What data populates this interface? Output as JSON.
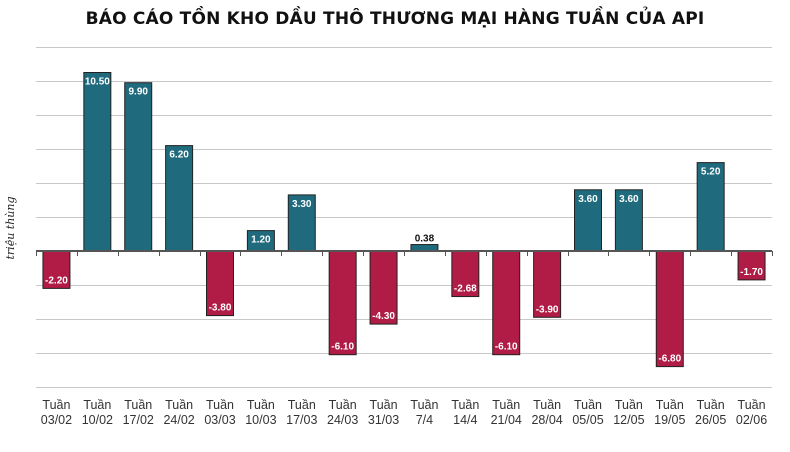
{
  "chart_data": {
    "type": "bar",
    "title": "BÁO CÁO TỒN KHO DẦU THÔ THƯƠNG MẠI HÀNG TUẦN CỦA API",
    "ylabel": "triệu thùng",
    "xlabel": "",
    "categories": [
      [
        "Tuần",
        "03/02"
      ],
      [
        "Tuần",
        "10/02"
      ],
      [
        "Tuần",
        "17/02"
      ],
      [
        "Tuần",
        "24/02"
      ],
      [
        "Tuần",
        "03/03"
      ],
      [
        "Tuần",
        "10/03"
      ],
      [
        "Tuần",
        "17/03"
      ],
      [
        "Tuần",
        "24/03"
      ],
      [
        "Tuần",
        "31/03"
      ],
      [
        "Tuần",
        "7/4"
      ],
      [
        "Tuần",
        "14/4"
      ],
      [
        "Tuần",
        "21/04"
      ],
      [
        "Tuần",
        "28/04"
      ],
      [
        "Tuần",
        "05/05"
      ],
      [
        "Tuần",
        "12/05"
      ],
      [
        "Tuần",
        "19/05"
      ],
      [
        "Tuần",
        "26/05"
      ],
      [
        "Tuần",
        "02/06"
      ]
    ],
    "values": [
      -2.2,
      10.5,
      9.9,
      6.2,
      -3.8,
      1.2,
      3.3,
      -6.1,
      -4.3,
      0.38,
      -2.68,
      -6.1,
      -3.9,
      3.6,
      3.6,
      -6.8,
      5.2,
      -1.7
    ],
    "value_labels": [
      "-2.20",
      "10.50",
      "9.90",
      "6.20",
      "-3.80",
      "1.20",
      "3.30",
      "-6.10",
      "-4.30",
      "0.38",
      "-2.68",
      "-6.10",
      "-3.90",
      "3.60",
      "3.60",
      "-6.80",
      "5.20",
      "-1.70"
    ],
    "ylim": [
      -8,
      12
    ],
    "grid_step": 2,
    "grid": true,
    "legend": "none",
    "colors": {
      "positive": "#1f6b7d",
      "negative": "#b01c45",
      "label_on_bar": "#ffffff",
      "label_outside": "#111111"
    }
  }
}
